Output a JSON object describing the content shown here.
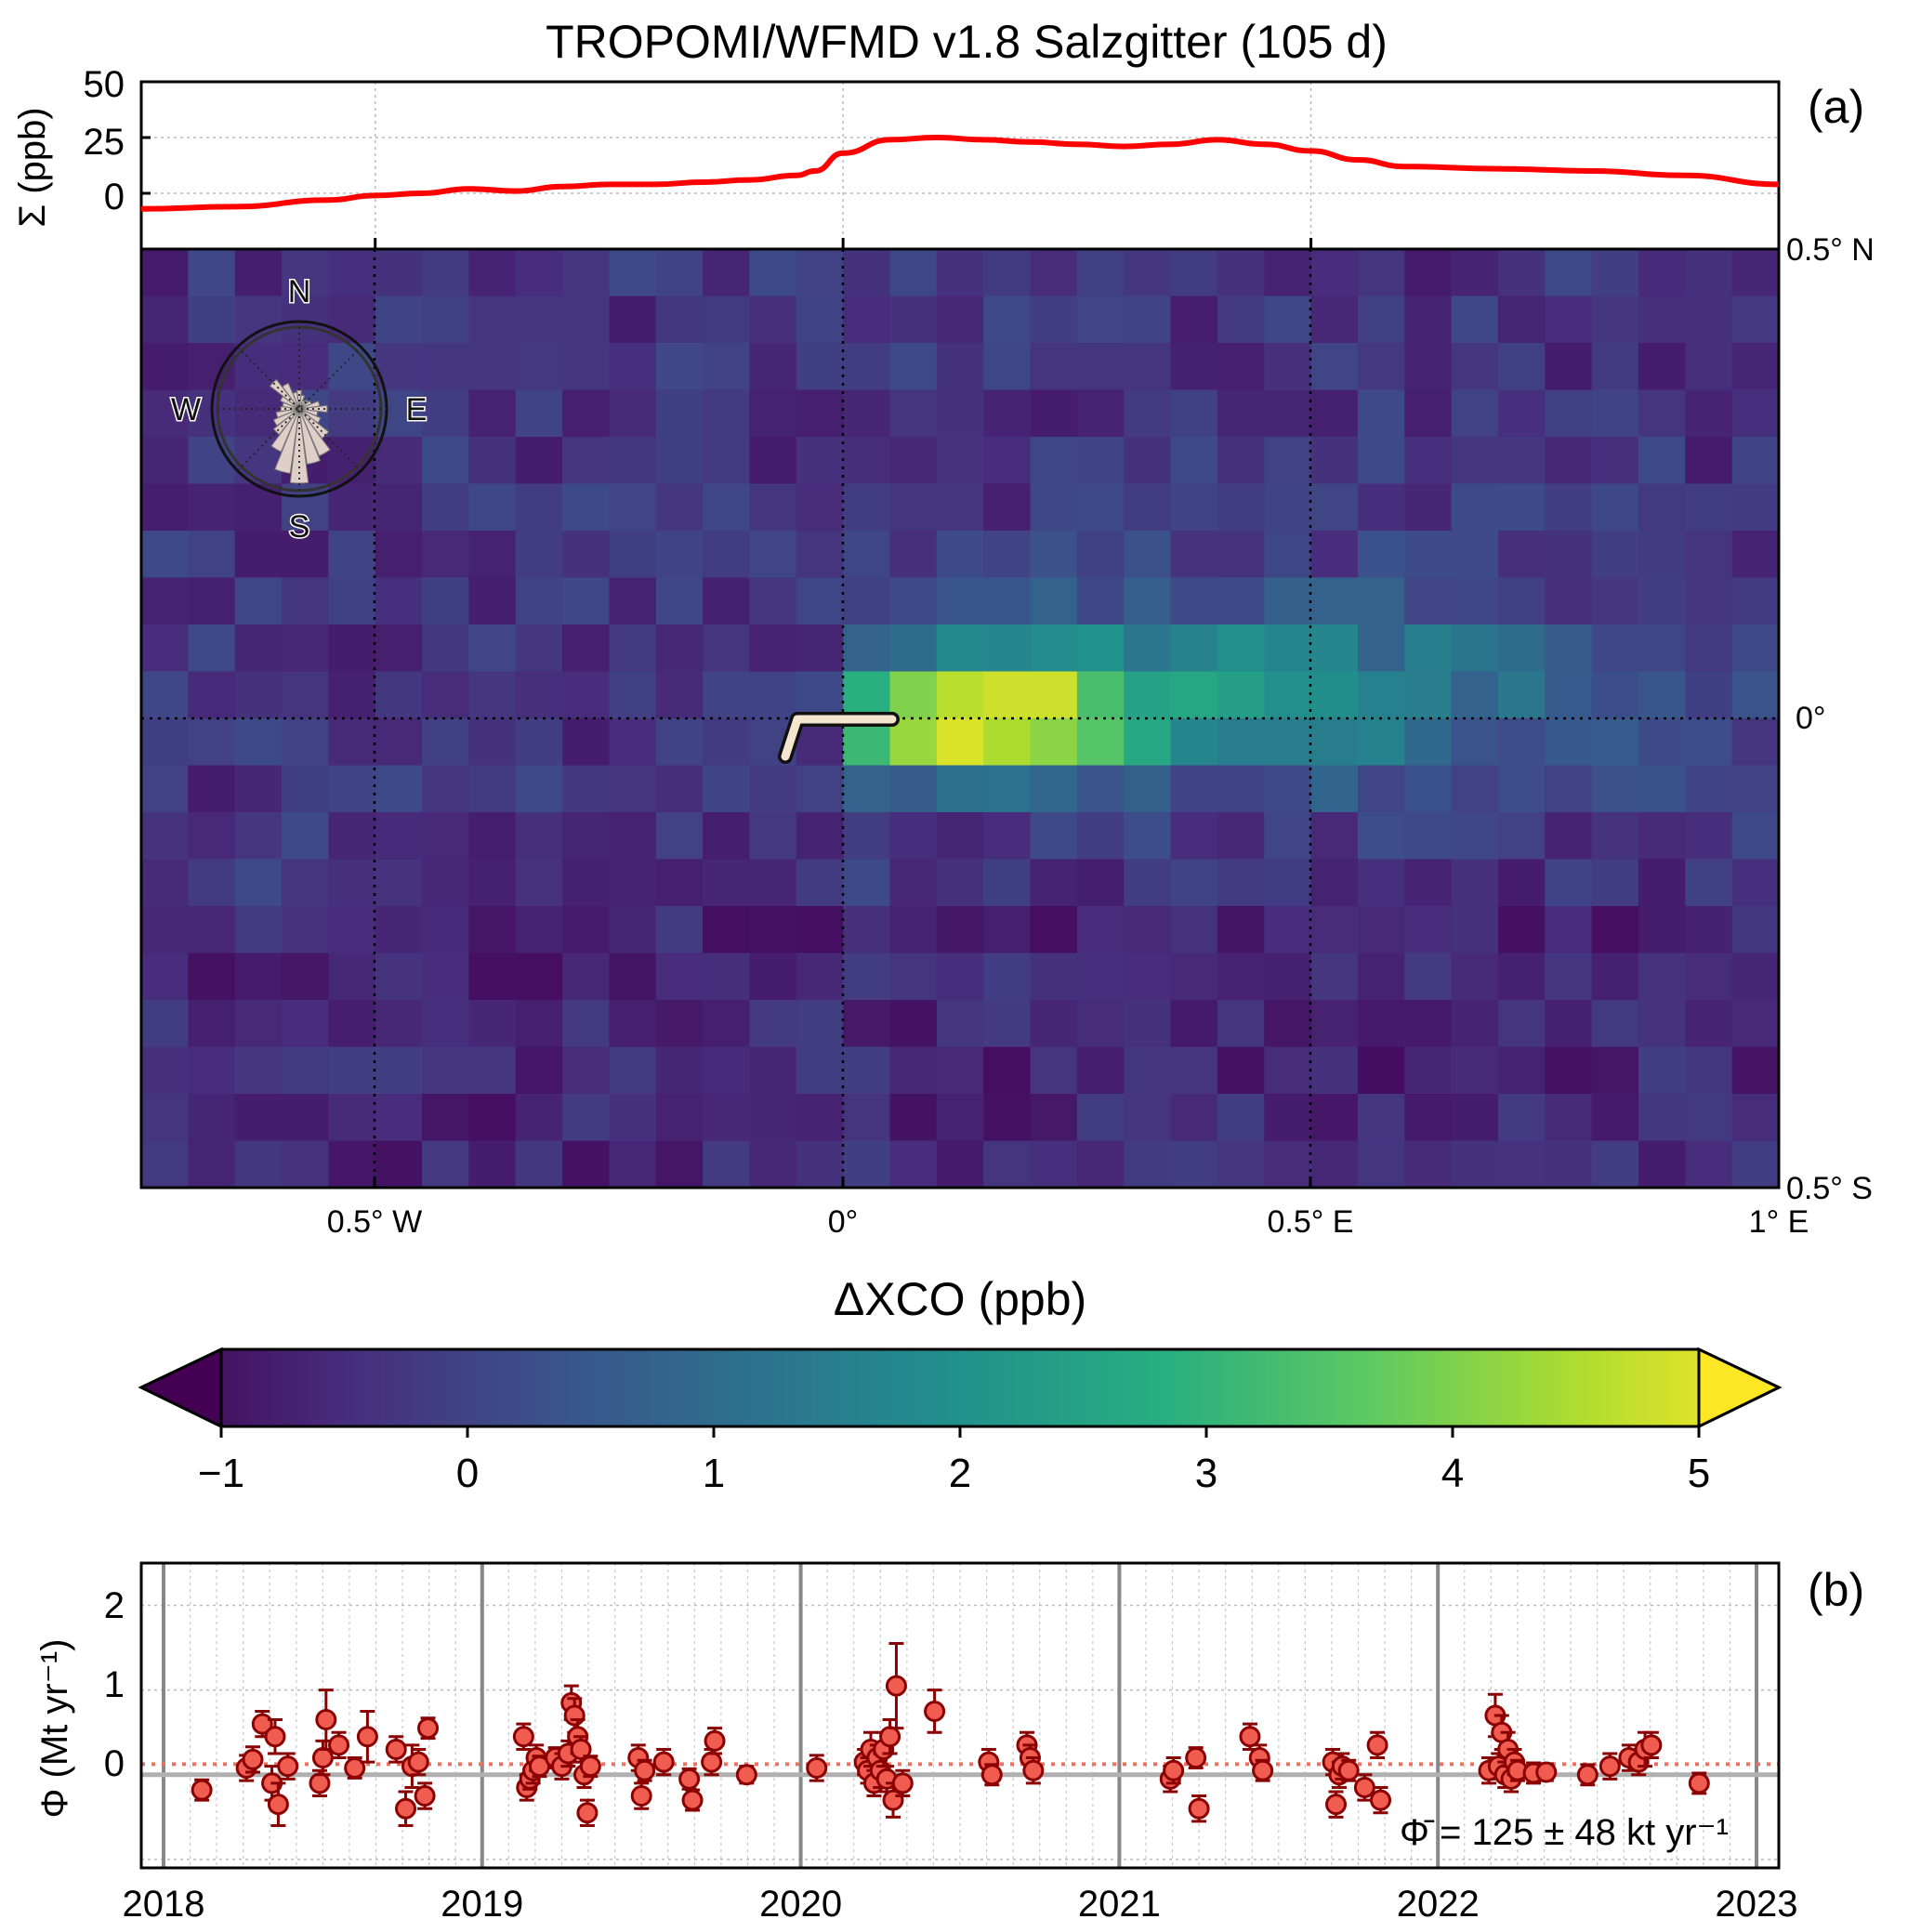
{
  "title": "TROPOMI/WFMD v1.8 Salzgitter (105 d)",
  "chart_data": [
    {
      "panel": "(a) top",
      "type": "line",
      "ylabel": "Σ (ppb)",
      "yticks": [
        "50",
        "25",
        "0"
      ],
      "ylim": [
        -25,
        50
      ],
      "xlim": [
        -0.75,
        1.0
      ],
      "grid": true,
      "series": [
        {
          "color": "#ff0000",
          "x": [
            -0.75,
            -0.65,
            -0.55,
            -0.5,
            -0.45,
            -0.4,
            -0.35,
            -0.3,
            -0.25,
            -0.2,
            -0.15,
            -0.1,
            -0.05,
            -0.03,
            0.0,
            0.05,
            0.1,
            0.15,
            0.2,
            0.25,
            0.3,
            0.35,
            0.4,
            0.45,
            0.5,
            0.55,
            0.6,
            0.7,
            0.8,
            0.9,
            1.0
          ],
          "y": [
            -7,
            -6,
            -3,
            -1,
            0,
            2,
            1,
            3,
            4,
            4,
            5,
            6,
            8,
            10,
            18,
            24,
            25,
            24,
            23,
            22,
            21,
            22,
            24,
            22,
            19,
            15,
            12,
            11,
            10,
            8,
            4
          ]
        }
      ]
    },
    {
      "panel": "(a) map",
      "type": "heatmap",
      "colorbar_label": "ΔXCO (ppb)",
      "colorbar_ticks": [
        "−1",
        "0",
        "1",
        "2",
        "3",
        "4",
        "5"
      ],
      "color_range": [
        -1,
        5
      ],
      "x_tick_labels": [
        "0.5° W",
        "0°",
        "0.5° E",
        "1° E"
      ],
      "y_tick_labels": [
        "0.5° N",
        "0°",
        "0.5° S"
      ],
      "xlim": [
        -0.75,
        1.0
      ],
      "ylim": [
        -0.5,
        0.5
      ],
      "wind_rose_labels": [
        "N",
        "E",
        "S",
        "W"
      ],
      "cols": 35,
      "rows": 20
    },
    {
      "panel": "(b)",
      "type": "scatter",
      "ylabel": "Φ (Mt yr⁻¹)",
      "yticks": [
        "2",
        "1",
        "0"
      ],
      "ylim": [
        -1.1,
        2.5
      ],
      "xticks": [
        "2018",
        "2019",
        "2020",
        "2021",
        "2022",
        "2023"
      ],
      "xlim": [
        2017.93,
        2023.07
      ],
      "mean_line": 0.125,
      "annotation": "Φ̄ = 125 ± 48 kt yr⁻¹",
      "points": [
        [
          2018.12,
          -0.18,
          0.12
        ],
        [
          2018.26,
          0.08,
          0.15
        ],
        [
          2018.28,
          0.18,
          0.15
        ],
        [
          2018.31,
          0.6,
          0.15
        ],
        [
          2018.34,
          -0.1,
          0.2
        ],
        [
          2018.35,
          0.45,
          0.2
        ],
        [
          2018.36,
          -0.35,
          0.25
        ],
        [
          2018.39,
          0.1,
          0.15
        ],
        [
          2018.49,
          -0.1,
          0.15
        ],
        [
          2018.5,
          0.2,
          0.2
        ],
        [
          2018.51,
          0.65,
          0.35
        ],
        [
          2018.55,
          0.35,
          0.15
        ],
        [
          2018.6,
          0.08,
          0.12
        ],
        [
          2018.64,
          0.45,
          0.3
        ],
        [
          2018.73,
          0.3,
          0.15
        ],
        [
          2018.76,
          -0.4,
          0.2
        ],
        [
          2018.78,
          0.1,
          0.25
        ],
        [
          2018.8,
          0.15,
          0.15
        ],
        [
          2018.82,
          -0.25,
          0.15
        ],
        [
          2018.83,
          0.55,
          0.12
        ],
        [
          2019.13,
          0.45,
          0.15
        ],
        [
          2019.14,
          -0.15,
          0.15
        ],
        [
          2019.15,
          -0.05,
          0.12
        ],
        [
          2019.16,
          0.05,
          0.15
        ],
        [
          2019.17,
          0.2,
          0.15
        ],
        [
          2019.18,
          0.1,
          0.12
        ],
        [
          2019.23,
          0.2,
          0.12
        ],
        [
          2019.25,
          0.1,
          0.15
        ],
        [
          2019.27,
          0.25,
          0.15
        ],
        [
          2019.28,
          0.85,
          0.2
        ],
        [
          2019.29,
          0.7,
          0.2
        ],
        [
          2019.3,
          0.45,
          0.2
        ],
        [
          2019.31,
          0.3,
          0.15
        ],
        [
          2019.32,
          0.0,
          0.15
        ],
        [
          2019.33,
          -0.45,
          0.15
        ],
        [
          2019.34,
          0.1,
          0.12
        ],
        [
          2019.49,
          0.2,
          0.15
        ],
        [
          2019.5,
          -0.25,
          0.15
        ],
        [
          2019.51,
          0.05,
          0.12
        ],
        [
          2019.57,
          0.15,
          0.15
        ],
        [
          2019.65,
          -0.05,
          0.12
        ],
        [
          2019.66,
          -0.3,
          0.12
        ],
        [
          2019.72,
          0.15,
          0.15
        ],
        [
          2019.73,
          0.4,
          0.15
        ],
        [
          2019.83,
          0.0,
          0.1
        ],
        [
          2020.05,
          0.08,
          0.15
        ],
        [
          2020.2,
          0.15,
          0.15
        ],
        [
          2020.21,
          0.05,
          0.15
        ],
        [
          2020.22,
          0.3,
          0.2
        ],
        [
          2020.23,
          -0.1,
          0.15
        ],
        [
          2020.24,
          0.2,
          0.15
        ],
        [
          2020.25,
          0.05,
          0.2
        ],
        [
          2020.26,
          0.3,
          0.2
        ],
        [
          2020.27,
          -0.05,
          0.15
        ],
        [
          2020.28,
          0.45,
          0.2
        ],
        [
          2020.29,
          -0.3,
          0.2
        ],
        [
          2020.3,
          1.05,
          0.5
        ],
        [
          2020.32,
          -0.1,
          0.15
        ],
        [
          2020.42,
          0.75,
          0.25
        ],
        [
          2020.59,
          0.15,
          0.15
        ],
        [
          2020.6,
          0.0,
          0.12
        ],
        [
          2020.71,
          0.35,
          0.15
        ],
        [
          2020.72,
          0.2,
          0.15
        ],
        [
          2020.73,
          0.05,
          0.15
        ],
        [
          2021.16,
          -0.05,
          0.15
        ],
        [
          2021.17,
          0.05,
          0.15
        ],
        [
          2021.24,
          0.2,
          0.12
        ],
        [
          2021.25,
          -0.4,
          0.15
        ],
        [
          2021.41,
          0.45,
          0.15
        ],
        [
          2021.44,
          0.2,
          0.15
        ],
        [
          2021.45,
          0.05,
          0.12
        ],
        [
          2021.67,
          0.15,
          0.15
        ],
        [
          2021.68,
          -0.35,
          0.15
        ],
        [
          2021.69,
          0.0,
          0.15
        ],
        [
          2021.7,
          0.1,
          0.15
        ],
        [
          2021.72,
          0.05,
          0.12
        ],
        [
          2021.77,
          -0.15,
          0.15
        ],
        [
          2021.81,
          0.35,
          0.15
        ],
        [
          2021.82,
          -0.3,
          0.15
        ],
        [
          2022.16,
          0.05,
          0.15
        ],
        [
          2022.18,
          0.7,
          0.25
        ],
        [
          2022.19,
          0.1,
          0.15
        ],
        [
          2022.2,
          0.5,
          0.2
        ],
        [
          2022.21,
          0.0,
          0.15
        ],
        [
          2022.22,
          0.3,
          0.2
        ],
        [
          2022.23,
          -0.05,
          0.15
        ],
        [
          2022.24,
          0.15,
          0.15
        ],
        [
          2022.25,
          0.05,
          0.12
        ],
        [
          2022.3,
          0.02,
          0.12
        ],
        [
          2022.34,
          0.03,
          0.1
        ],
        [
          2022.47,
          0.0,
          0.12
        ],
        [
          2022.54,
          0.1,
          0.15
        ],
        [
          2022.6,
          0.2,
          0.15
        ],
        [
          2022.63,
          0.15,
          0.15
        ],
        [
          2022.65,
          0.3,
          0.2
        ],
        [
          2022.67,
          0.35,
          0.15
        ],
        [
          2022.82,
          -0.1,
          0.12
        ]
      ]
    }
  ],
  "colors": {
    "line": "#ff0000",
    "point_fill": "#f05c4f",
    "point_edge": "#8b0000",
    "mean_line": "#f07060",
    "zero_line": "#b0b0b0",
    "year_line": "#888888",
    "rose_fill": "#e0cfc8",
    "sensor_shape": "#f5e6d0"
  }
}
